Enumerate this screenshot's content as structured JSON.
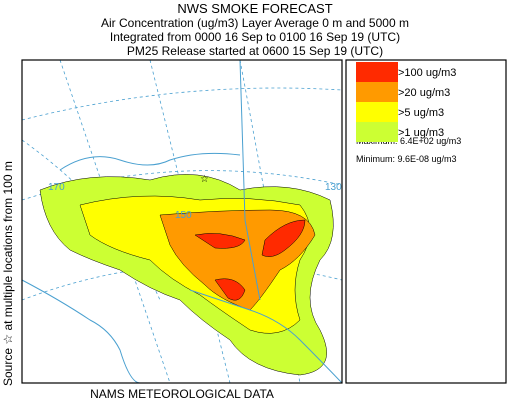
{
  "header": {
    "title": "NWS SMOKE FORECAST",
    "lines": [
      "Air Concentration (ug/m3) Layer Average    0 m and  5000 m",
      "Integrated from 0000 16 Sep to 0100 16 Sep 19 (UTC)",
      "PM25 Release started at 0600 15 Sep 19 (UTC)"
    ]
  },
  "legend": {
    "entries": [
      {
        "label": ">100 ug/m3",
        "color": "#ff2a00"
      },
      {
        "label": ">20 ug/m3",
        "color": "#ff9a00"
      },
      {
        "label": ">5 ug/m3",
        "color": "#ffff00"
      },
      {
        "label": ">1 ug/m3",
        "color": "#ccff33"
      }
    ],
    "maximum": "Maximum: 6.4E+02 ug/m3",
    "minimum": "Minimum: 9.6E-08 ug/m3"
  },
  "map": {
    "labels": [
      "170",
      "150",
      "130"
    ]
  },
  "side_label": "Source ☆ at multiple locations from   100 m",
  "footer": "NAMS METEOROLOGICAL DATA"
}
